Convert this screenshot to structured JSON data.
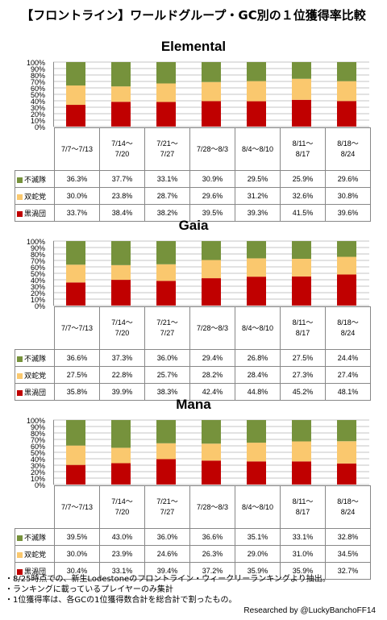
{
  "title": "【フロントライン】ワールドグループ・GC別の１位獲得率比較",
  "colors": {
    "不滅隊": "#76923c",
    "双蛇党": "#fac86e",
    "黒渦団": "#c00000"
  },
  "chart_data": [
    {
      "type": "bar",
      "stacked": true,
      "title": "Elemental",
      "categories": [
        "7/7〜7/13",
        "7/14〜7/20",
        "7/21〜7/27",
        "7/28〜8/3",
        "8/4〜8/10",
        "8/11〜8/17",
        "8/18〜8/24"
      ],
      "yticks": [
        "100%",
        "90%",
        "80%",
        "70%",
        "60%",
        "50%",
        "40%",
        "30%",
        "20%",
        "10%",
        "0%"
      ],
      "ylim": [
        0,
        100
      ],
      "series": [
        {
          "name": "不滅隊",
          "values": [
            36.3,
            37.7,
            33.1,
            30.9,
            29.5,
            25.9,
            29.6
          ],
          "labels": [
            "36.3%",
            "37.7%",
            "33.1%",
            "30.9%",
            "29.5%",
            "25.9%",
            "29.6%"
          ]
        },
        {
          "name": "双蛇党",
          "values": [
            30.0,
            23.8,
            28.7,
            29.6,
            31.2,
            32.6,
            30.8
          ],
          "labels": [
            "30.0%",
            "23.8%",
            "28.7%",
            "29.6%",
            "31.2%",
            "32.6%",
            "30.8%"
          ]
        },
        {
          "name": "黒渦団",
          "values": [
            33.7,
            38.4,
            38.2,
            39.5,
            39.3,
            41.5,
            39.6
          ],
          "labels": [
            "33.7%",
            "38.4%",
            "38.2%",
            "39.5%",
            "39.3%",
            "41.5%",
            "39.6%"
          ]
        }
      ]
    },
    {
      "type": "bar",
      "stacked": true,
      "title": "Gaia",
      "categories": [
        "7/7〜7/13",
        "7/14〜7/20",
        "7/21〜7/27",
        "7/28〜8/3",
        "8/4〜8/10",
        "8/11〜8/17",
        "8/18〜8/24"
      ],
      "yticks": [
        "100%",
        "90%",
        "80%",
        "70%",
        "60%",
        "50%",
        "40%",
        "30%",
        "20%",
        "10%",
        "0%"
      ],
      "ylim": [
        0,
        100
      ],
      "series": [
        {
          "name": "不滅隊",
          "values": [
            36.6,
            37.3,
            36.0,
            29.4,
            26.8,
            27.5,
            24.4
          ],
          "labels": [
            "36.6%",
            "37.3%",
            "36.0%",
            "29.4%",
            "26.8%",
            "27.5%",
            "24.4%"
          ]
        },
        {
          "name": "双蛇党",
          "values": [
            27.5,
            22.8,
            25.7,
            28.2,
            28.4,
            27.3,
            27.4
          ],
          "labels": [
            "27.5%",
            "22.8%",
            "25.7%",
            "28.2%",
            "28.4%",
            "27.3%",
            "27.4%"
          ]
        },
        {
          "name": "黒渦団",
          "values": [
            35.8,
            39.9,
            38.3,
            42.4,
            44.8,
            45.2,
            48.1
          ],
          "labels": [
            "35.8%",
            "39.9%",
            "38.3%",
            "42.4%",
            "44.8%",
            "45.2%",
            "48.1%"
          ]
        }
      ]
    },
    {
      "type": "bar",
      "stacked": true,
      "title": "Mana",
      "categories": [
        "7/7〜7/13",
        "7/14〜7/20",
        "7/21〜7/27",
        "7/28〜8/3",
        "8/4〜8/10",
        "8/11〜8/17",
        "8/18〜8/24"
      ],
      "yticks": [
        "100%",
        "90%",
        "80%",
        "70%",
        "60%",
        "50%",
        "40%",
        "30%",
        "20%",
        "10%",
        "0%"
      ],
      "ylim": [
        0,
        100
      ],
      "series": [
        {
          "name": "不滅隊",
          "values": [
            39.5,
            43.0,
            36.0,
            36.6,
            35.1,
            33.1,
            32.8
          ],
          "labels": [
            "39.5%",
            "43.0%",
            "36.0%",
            "36.6%",
            "35.1%",
            "33.1%",
            "32.8%"
          ]
        },
        {
          "name": "双蛇党",
          "values": [
            30.0,
            23.9,
            24.6,
            26.3,
            29.0,
            31.0,
            34.5
          ],
          "labels": [
            "30.0%",
            "23.9%",
            "24.6%",
            "26.3%",
            "29.0%",
            "31.0%",
            "34.5%"
          ]
        },
        {
          "name": "黒渦団",
          "values": [
            30.4,
            33.1,
            39.4,
            37.2,
            35.9,
            35.9,
            32.7
          ],
          "labels": [
            "30.4%",
            "33.1%",
            "39.4%",
            "37.2%",
            "35.9%",
            "35.9%",
            "32.7%"
          ]
        }
      ]
    }
  ],
  "notes": [
    "・8/25時点での、新生Lodestoneのフロントライン・ウィークリーランキングより抽出。",
    "・ランキングに載っているプレイヤーのみ集計",
    "・1位獲得率は、各GCの1位獲得数合計を総合計で割ったもの。"
  ],
  "credit": "Researched by @LuckyBanchoFF14"
}
